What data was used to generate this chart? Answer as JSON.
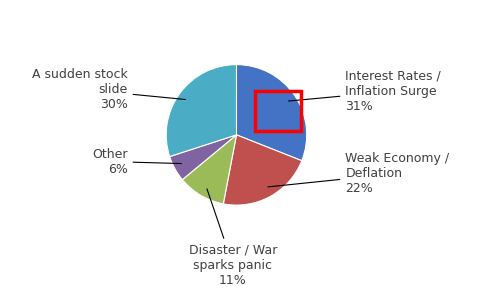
{
  "percentages": [
    31,
    22,
    11,
    6,
    30
  ],
  "colors": [
    "#4472C4",
    "#C0504D",
    "#9BBB59",
    "#8064A2",
    "#4BACC6"
  ],
  "label_lines": [
    [
      "Interest Rates /",
      "Inflation Surge",
      "31%"
    ],
    [
      "Weak Economy /",
      "Deflation",
      "22%"
    ],
    [
      "Disaster / War",
      "sparks panic",
      "11%"
    ],
    [
      "Other",
      "6%"
    ],
    [
      "A sudden stock",
      "slide",
      "30%"
    ]
  ],
  "highlight_slice": 0,
  "highlight_color": "#FF0000",
  "background_color": "#FFFFFF",
  "font_size": 9,
  "startangle": 90
}
